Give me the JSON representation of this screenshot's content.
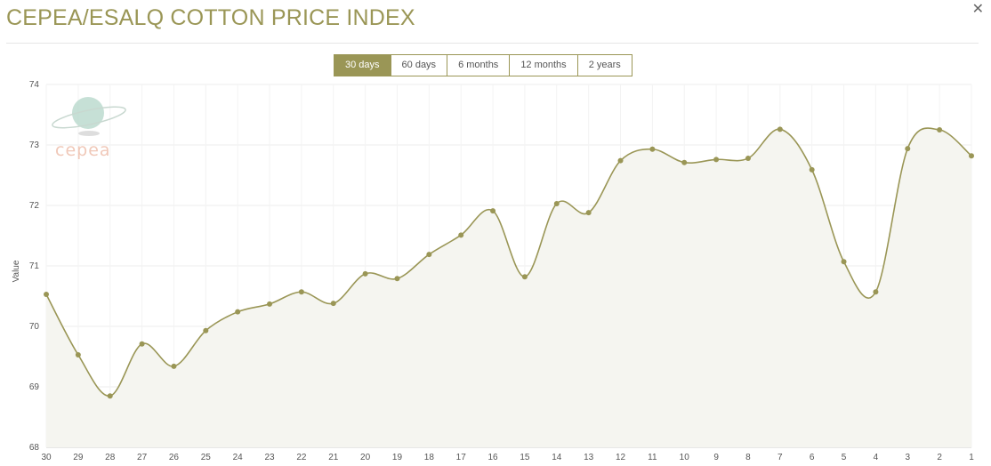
{
  "header": {
    "title": "CEPEA/ESALQ COTTON PRICE INDEX",
    "close_icon": "close-icon"
  },
  "range_buttons": [
    {
      "label": "30 days",
      "active": true
    },
    {
      "label": "60 days",
      "active": false
    },
    {
      "label": "6 months",
      "active": false
    },
    {
      "label": "12 months",
      "active": false
    },
    {
      "label": "2 years",
      "active": false
    }
  ],
  "logo": {
    "text": "cepea"
  },
  "chart_data": {
    "type": "area",
    "title": "",
    "xlabel": "",
    "ylabel": "Value",
    "ylim": [
      68,
      74
    ],
    "yticks": [
      68,
      69,
      70,
      71,
      72,
      73,
      74
    ],
    "grid": true,
    "line_color": "#9a9656",
    "fill_color": "#f5f5f0",
    "categories": [
      "30",
      "29",
      "28",
      "27",
      "26",
      "25",
      "24",
      "23",
      "22",
      "21",
      "20",
      "19",
      "18",
      "17",
      "16",
      "15",
      "14",
      "13",
      "12",
      "11",
      "10",
      "9",
      "8",
      "7",
      "6",
      "5",
      "4",
      "3",
      "2",
      "1"
    ],
    "values": [
      70.53,
      69.53,
      68.85,
      69.71,
      69.34,
      69.93,
      70.24,
      70.37,
      70.57,
      70.38,
      70.87,
      70.79,
      71.19,
      71.51,
      71.91,
      70.82,
      72.03,
      71.88,
      72.74,
      72.93,
      72.71,
      72.76,
      72.78,
      73.26,
      72.59,
      71.07,
      70.57,
      72.94,
      73.25,
      72.82
    ]
  }
}
